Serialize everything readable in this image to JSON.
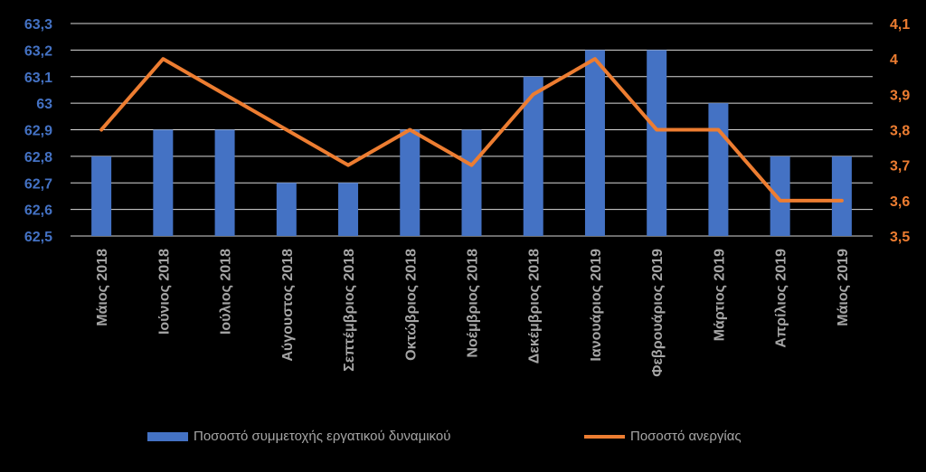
{
  "chart_data": {
    "type": "bar+line",
    "title": "",
    "categories": [
      "Μάιος 2018",
      "Ιούνιος 2018",
      "Ιούλιος 2018",
      "Αύγουστος 2018",
      "Σεπτέμβριος 2018",
      "Οκτώβριος 2018",
      "Νοέμβριος 2018",
      "Δεκέμβριος 2018",
      "Ιανουάριος 2019",
      "Φεβρουάριος 2019",
      "Μάρτιος 2019",
      "Απρίλιος 2019",
      "Μάιος 2019"
    ],
    "series": [
      {
        "name": "Ποσοστό συμμετοχής εργατικού δυναμικού",
        "type": "bar",
        "axis": "left",
        "color": "#4472c4",
        "values": [
          62.8,
          62.9,
          62.9,
          62.7,
          62.7,
          62.9,
          62.9,
          63.1,
          63.2,
          63.2,
          63.0,
          62.8,
          62.8
        ]
      },
      {
        "name": "Ποσοστό ανεργίας",
        "type": "line",
        "axis": "right",
        "color": "#ed7d31",
        "values": [
          3.8,
          4.0,
          3.9,
          3.8,
          3.7,
          3.8,
          3.7,
          3.9,
          4.0,
          3.8,
          3.8,
          3.6,
          3.6
        ]
      }
    ],
    "y_left": {
      "lim": [
        62.5,
        63.3
      ],
      "ticks": [
        "62,5",
        "62,6",
        "62,7",
        "62,8",
        "62,9",
        "63",
        "63,1",
        "63,2",
        "63,3"
      ],
      "color": "#4472c4"
    },
    "y_right": {
      "lim": [
        3.5,
        4.1
      ],
      "ticks": [
        "3,5",
        "3,6",
        "3,7",
        "3,8",
        "3,9",
        "4",
        "4,1"
      ],
      "color": "#ed7d31"
    },
    "grid": true,
    "legend_position": "bottom",
    "background": "#000000",
    "label_color": "#a6a6a6",
    "grid_color": "#d9d9d9"
  }
}
